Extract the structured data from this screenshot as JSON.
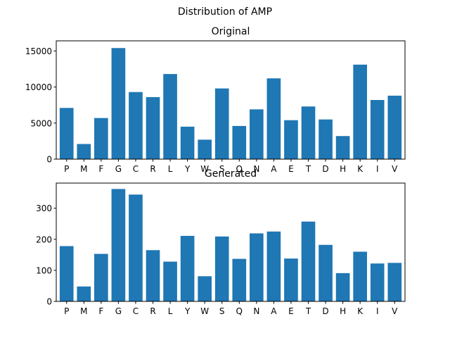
{
  "suptitle": "Distribution of AMP",
  "colors": {
    "bar": "#1f77b4"
  },
  "chart_data": [
    {
      "type": "bar",
      "title": "Original",
      "categories": [
        "P",
        "M",
        "F",
        "G",
        "C",
        "R",
        "L",
        "Y",
        "W",
        "S",
        "Q",
        "N",
        "A",
        "E",
        "T",
        "D",
        "H",
        "K",
        "I",
        "V"
      ],
      "values": [
        7100,
        2100,
        5700,
        15400,
        9300,
        8600,
        11800,
        4500,
        2700,
        9800,
        4600,
        6900,
        11200,
        5400,
        7300,
        5500,
        3200,
        13100,
        8200,
        8800
      ],
      "ylim": [
        0,
        16400
      ],
      "yticks": [
        0,
        5000,
        10000,
        15000
      ],
      "ytick_labels": [
        "0",
        "5000",
        "10000",
        "15000"
      ],
      "xlabel": "",
      "ylabel": ""
    },
    {
      "type": "bar",
      "title": "Generated",
      "categories": [
        "P",
        "M",
        "F",
        "G",
        "C",
        "R",
        "L",
        "Y",
        "W",
        "S",
        "Q",
        "N",
        "A",
        "E",
        "T",
        "D",
        "H",
        "K",
        "I",
        "V"
      ],
      "values": [
        178,
        48,
        153,
        362,
        344,
        165,
        128,
        211,
        81,
        209,
        137,
        219,
        225,
        138,
        257,
        182,
        91,
        160,
        122,
        124
      ],
      "ylim": [
        0,
        381
      ],
      "yticks": [
        0,
        100,
        200,
        300
      ],
      "ytick_labels": [
        "0",
        "100",
        "200",
        "300"
      ],
      "xlabel": "",
      "ylabel": ""
    }
  ]
}
